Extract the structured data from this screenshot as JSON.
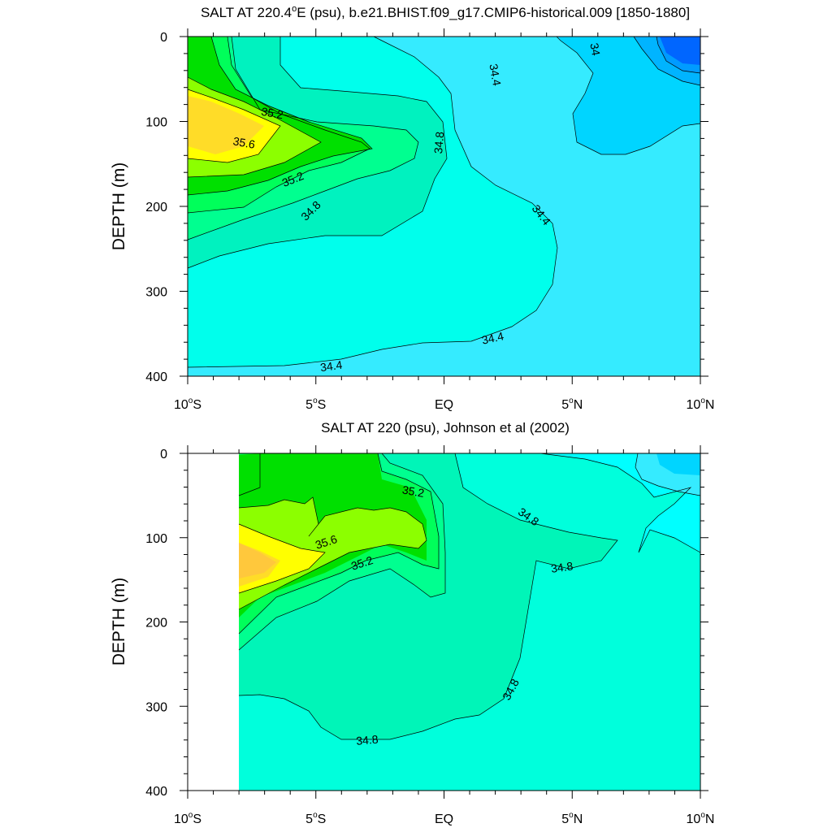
{
  "chart_data": [
    {
      "type": "contour",
      "title_main": "SALT AT 220.4",
      "title_deg": "o",
      "title_rest": "E (psu), b.e21.BHIST.f09_g17.CMIP6-historical.009 [1850-1880]",
      "ylabel": "DEPTH (m)",
      "xlim": [
        -10,
        10
      ],
      "ylim": [
        400,
        0
      ],
      "yticks": [
        "0",
        "100",
        "200",
        "300",
        "400"
      ],
      "xticks": [
        {
          "value": -10,
          "num": "10",
          "deg": "o",
          "hem": "S"
        },
        {
          "value": -5,
          "num": "5",
          "deg": "o",
          "hem": "S"
        },
        {
          "value": 0,
          "num": "EQ",
          "deg": "",
          "hem": ""
        },
        {
          "value": 5,
          "num": "5",
          "deg": "o",
          "hem": "N"
        },
        {
          "value": 10,
          "num": "10",
          "deg": "o",
          "hem": "N"
        }
      ],
      "contour_labels": [
        {
          "text": "34",
          "lon": 5.9,
          "depth": 15,
          "rot": 80
        },
        {
          "text": "34.4",
          "lon": 2.0,
          "depth": 45,
          "rot": 80
        },
        {
          "text": "34.8",
          "lon": -0.2,
          "depth": 125,
          "rot": -85
        },
        {
          "text": "35.2",
          "lon": -6.7,
          "depth": 90,
          "rot": 10
        },
        {
          "text": "35.6",
          "lon": -7.8,
          "depth": 125,
          "rot": 10
        },
        {
          "text": "35.2",
          "lon": -5.9,
          "depth": 168,
          "rot": -22
        },
        {
          "text": "34.8",
          "lon": -5.2,
          "depth": 205,
          "rot": -45
        },
        {
          "text": "34.4",
          "lon": 3.8,
          "depth": 210,
          "rot": 52
        },
        {
          "text": "34.4",
          "lon": 1.9,
          "depth": 355,
          "rot": -12
        },
        {
          "text": "34.4",
          "lon": -4.4,
          "depth": 388,
          "rot": -8
        }
      ]
    },
    {
      "type": "contour",
      "title_main": "SALT AT 220 (psu), Johnson et al (2002)",
      "ylabel": "DEPTH (m)",
      "xlim": [
        -10,
        10
      ],
      "ylim": [
        400,
        0
      ],
      "yticks": [
        "0",
        "100",
        "200",
        "300",
        "400"
      ],
      "xticks": [
        {
          "value": -10,
          "num": "10",
          "deg": "o",
          "hem": "S"
        },
        {
          "value": -5,
          "num": "5",
          "deg": "o",
          "hem": "S"
        },
        {
          "value": 0,
          "num": "EQ",
          "deg": "",
          "hem": ""
        },
        {
          "value": 5,
          "num": "5",
          "deg": "o",
          "hem": "N"
        },
        {
          "value": 10,
          "num": "10",
          "deg": "o",
          "hem": "N"
        }
      ],
      "contour_labels": [
        {
          "text": "35.2",
          "lon": -1.2,
          "depth": 45,
          "rot": 10
        },
        {
          "text": "34.8",
          "lon": 3.3,
          "depth": 75,
          "rot": 35
        },
        {
          "text": "35.6",
          "lon": -4.6,
          "depth": 105,
          "rot": -18
        },
        {
          "text": "35.2",
          "lon": -3.2,
          "depth": 130,
          "rot": -18
        },
        {
          "text": "34.8",
          "lon": 4.6,
          "depth": 135,
          "rot": -8
        },
        {
          "text": "34.8",
          "lon": 2.6,
          "depth": 280,
          "rot": -62
        },
        {
          "text": "34.8",
          "lon": -3.0,
          "depth": 340,
          "rot": -5
        }
      ]
    }
  ]
}
